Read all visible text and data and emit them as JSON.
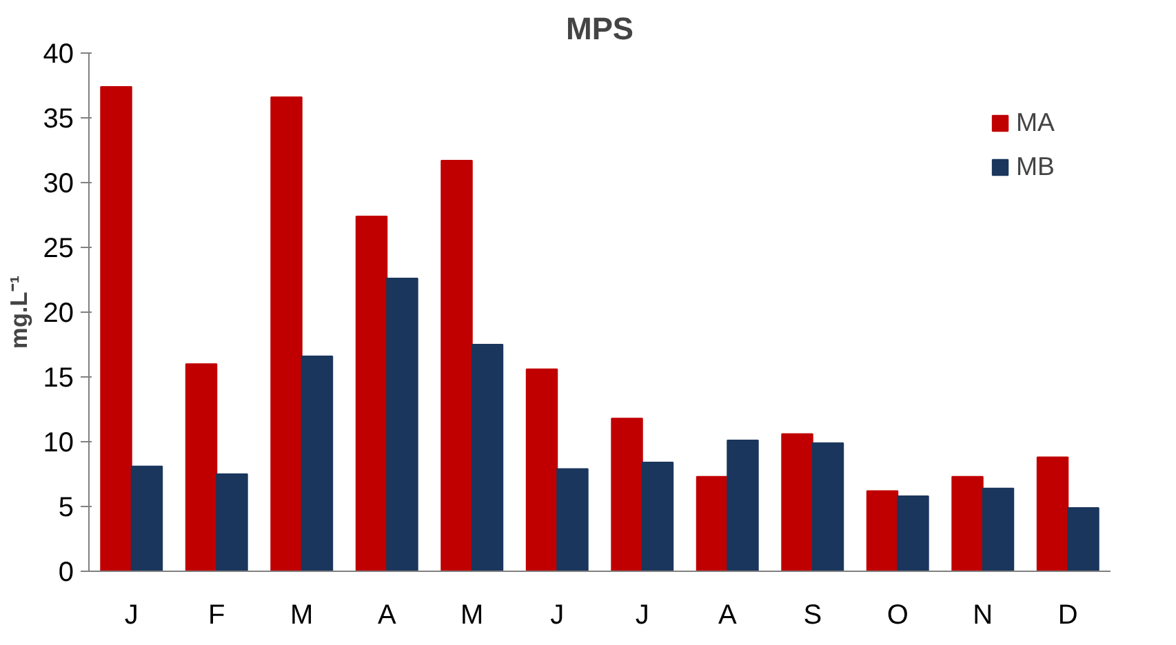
{
  "chart_data": {
    "type": "bar",
    "title": "MPS",
    "ylabel": "mg.L⁻¹",
    "categories": [
      "J",
      "F",
      "M",
      "A",
      "M",
      "J",
      "J",
      "A",
      "S",
      "O",
      "N",
      "D"
    ],
    "series": [
      {
        "name": "MA",
        "color": "#c00000",
        "values": [
          37.4,
          16.0,
          36.6,
          27.4,
          31.7,
          15.6,
          11.8,
          7.3,
          10.6,
          6.2,
          7.3,
          8.8
        ]
      },
      {
        "name": "MB",
        "color": "#1a365d",
        "values": [
          8.1,
          7.5,
          16.6,
          22.6,
          17.5,
          7.9,
          8.4,
          10.1,
          9.9,
          5.8,
          6.4,
          4.9
        ]
      }
    ],
    "ylim": [
      0,
      40
    ],
    "yticks": [
      0,
      5,
      10,
      15,
      20,
      25,
      30,
      35,
      40
    ],
    "grid": false,
    "legend": "top right"
  }
}
